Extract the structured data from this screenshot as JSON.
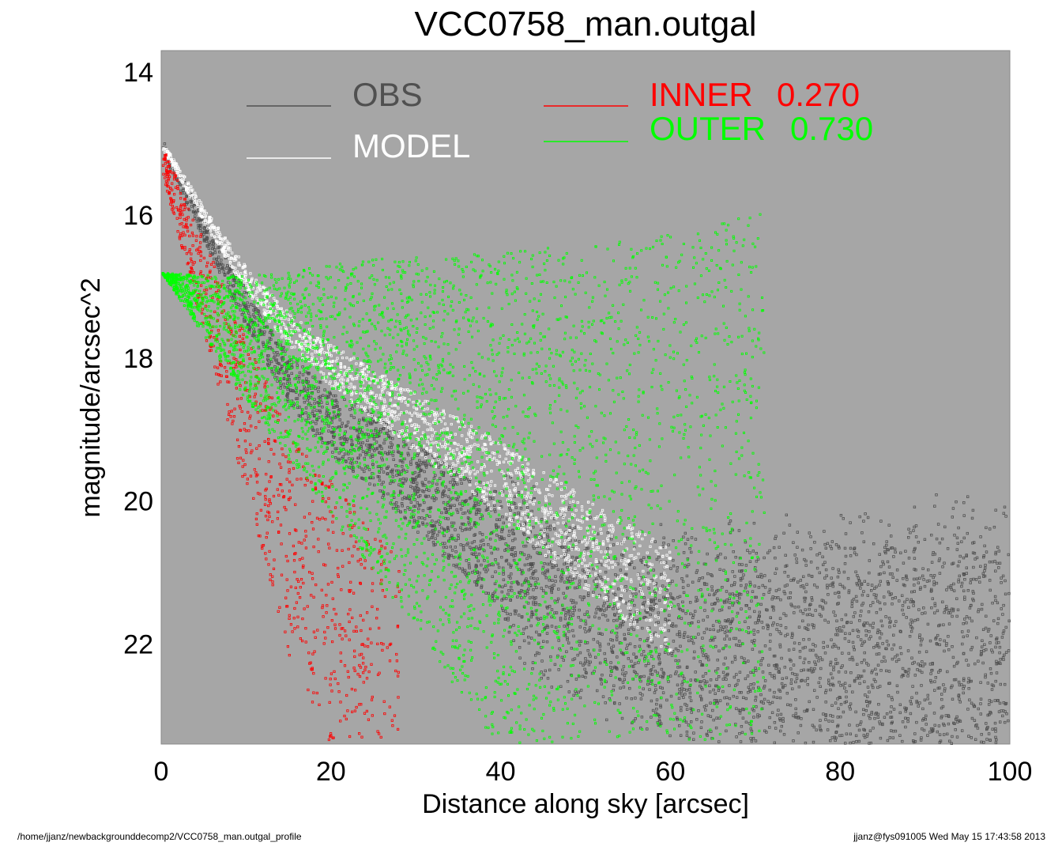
{
  "chart_data": {
    "type": "scatter",
    "title": "VCC0758_man.outgal",
    "xlabel": "Distance along sky [arcsec]",
    "ylabel": "magnitude/arcsec^2",
    "xlim": [
      0,
      100
    ],
    "ylim": [
      23.4,
      13.7
    ],
    "y_inverted": true,
    "x_ticks": [
      "0",
      "20",
      "40",
      "60",
      "80",
      "100"
    ],
    "y_ticks": [
      "14",
      "16",
      "18",
      "20",
      "22"
    ],
    "background": "#a6a6a6",
    "grid": false,
    "legend": [
      {
        "label": "OBS",
        "color": "#505050"
      },
      {
        "label": "MODEL",
        "color": "#ffffff"
      },
      {
        "label": "INNER",
        "value": "0.270",
        "color": "#ff0000"
      },
      {
        "label": "OUTER",
        "value": "0.730",
        "color": "#00ff00"
      }
    ],
    "series": [
      {
        "name": "OBS",
        "color": "#505050",
        "profile": {
          "x": [
            0,
            2,
            5,
            10,
            15,
            20,
            25,
            30,
            40,
            50,
            60,
            70,
            80,
            100
          ],
          "y": [
            15.0,
            15.5,
            16.2,
            17.3,
            18.3,
            18.9,
            19.3,
            19.8,
            20.7,
            21.4,
            21.8,
            21.9,
            22.0,
            22.0
          ]
        }
      },
      {
        "name": "MODEL",
        "color": "#ffffff",
        "profile": {
          "x": [
            0,
            2,
            5,
            10,
            15,
            20,
            25,
            30,
            40,
            50,
            60
          ],
          "y": [
            15.0,
            15.4,
            16.0,
            16.9,
            17.6,
            18.1,
            18.5,
            18.9,
            19.7,
            20.6,
            21.4
          ]
        }
      },
      {
        "name": "INNER",
        "color": "#ff0000",
        "profile": {
          "x": [
            0,
            5,
            10,
            15,
            20,
            25,
            28
          ],
          "y": [
            15.2,
            17.0,
            18.8,
            20.6,
            21.7,
            22.8,
            23.4
          ]
        }
      },
      {
        "name": "OUTER",
        "color": "#00ff00",
        "profile": {
          "x": [
            0,
            10,
            20,
            30,
            40,
            50,
            60,
            71
          ],
          "y": [
            16.8,
            17.9,
            18.8,
            19.7,
            20.7,
            21.7,
            22.6,
            23.4
          ]
        }
      }
    ]
  },
  "footer": {
    "left": "/home/jjanz/newbackgrounddecomp2/VCC0758_man.outgal_profile",
    "right": "jjanz@fys091005  Wed May 15 17:43:58 2013"
  }
}
